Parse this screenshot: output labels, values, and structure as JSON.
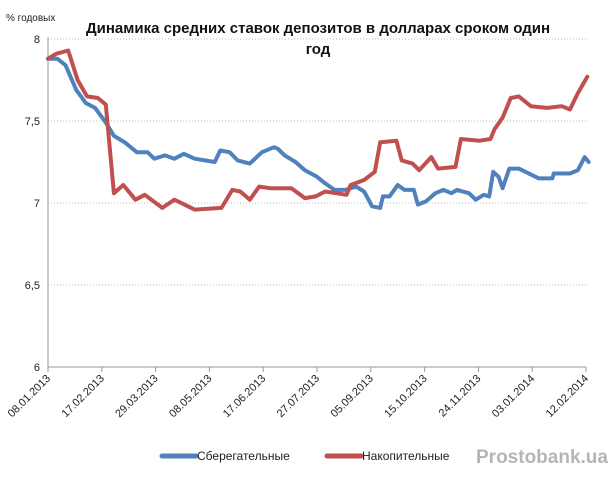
{
  "chart_data": {
    "type": "line",
    "title": "Динамика средних ставок депозитов в долларах сроком один год",
    "title_lines": [
      "Динамика средних  ставок депозитов в долларах сроком один",
      "год"
    ],
    "ylabel": "% годовых",
    "xlabel": "",
    "ylim": [
      6,
      8
    ],
    "yticks": [
      "6",
      "6,5",
      "7",
      "7,5",
      "8"
    ],
    "ytick_values": [
      6,
      6.5,
      7,
      7.5,
      8
    ],
    "xlim": [
      "2013-01-08",
      "2014-02-12"
    ],
    "xticks": [
      "08.01.2013",
      "17.02.2013",
      "29.03.2013",
      "08.05.2013",
      "17.06.2013",
      "27.07.2013",
      "05.09.2013",
      "15.10.2013",
      "24.11.2013",
      "03.01.2014",
      "12.02.2014"
    ],
    "xtick_dates": [
      "2013-01-08",
      "2013-02-17",
      "2013-03-29",
      "2013-05-08",
      "2013-06-17",
      "2013-07-27",
      "2013-09-05",
      "2013-10-15",
      "2013-11-24",
      "2014-01-03",
      "2014-02-12"
    ],
    "grid": "horizontal dotted",
    "legend_position": "bottom",
    "series": [
      {
        "name": "Сберегательные",
        "color": "#4f81bd",
        "points": [
          [
            "2013-01-08",
            7.88
          ],
          [
            "2013-01-15",
            7.88
          ],
          [
            "2013-01-21",
            7.84
          ],
          [
            "2013-01-29",
            7.69
          ],
          [
            "2013-02-05",
            7.61
          ],
          [
            "2013-02-12",
            7.58
          ],
          [
            "2013-02-20",
            7.49
          ],
          [
            "2013-02-26",
            7.41
          ],
          [
            "2013-03-06",
            7.37
          ],
          [
            "2013-03-15",
            7.31
          ],
          [
            "2013-03-23",
            7.31
          ],
          [
            "2013-03-28",
            7.27
          ],
          [
            "2013-04-05",
            7.29
          ],
          [
            "2013-04-12",
            7.27
          ],
          [
            "2013-04-19",
            7.3
          ],
          [
            "2013-04-27",
            7.27
          ],
          [
            "2013-05-12",
            7.25
          ],
          [
            "2013-05-16",
            7.32
          ],
          [
            "2013-05-23",
            7.31
          ],
          [
            "2013-05-29",
            7.26
          ],
          [
            "2013-06-07",
            7.24
          ],
          [
            "2013-06-16",
            7.31
          ],
          [
            "2013-06-25",
            7.34
          ],
          [
            "2013-06-28",
            7.33
          ],
          [
            "2013-07-03",
            7.29
          ],
          [
            "2013-07-11",
            7.25
          ],
          [
            "2013-07-18",
            7.2
          ],
          [
            "2013-07-27",
            7.16
          ],
          [
            "2013-08-02",
            7.12
          ],
          [
            "2013-08-09",
            7.08
          ],
          [
            "2013-08-17",
            7.08
          ],
          [
            "2013-08-25",
            7.1
          ],
          [
            "2013-08-31",
            7.07
          ],
          [
            "2013-09-06",
            6.98
          ],
          [
            "2013-09-12",
            6.97
          ],
          [
            "2013-09-14",
            7.04
          ],
          [
            "2013-09-19",
            7.04
          ],
          [
            "2013-09-25",
            7.11
          ],
          [
            "2013-09-30",
            7.08
          ],
          [
            "2013-10-07",
            7.08
          ],
          [
            "2013-10-10",
            6.99
          ],
          [
            "2013-10-16",
            7.01
          ],
          [
            "2013-10-23",
            7.06
          ],
          [
            "2013-10-29",
            7.08
          ],
          [
            "2013-11-04",
            7.06
          ],
          [
            "2013-11-08",
            7.08
          ],
          [
            "2013-11-17",
            7.06
          ],
          [
            "2013-11-22",
            7.02
          ],
          [
            "2013-11-28",
            7.05
          ],
          [
            "2013-12-02",
            7.04
          ],
          [
            "2013-12-05",
            7.19
          ],
          [
            "2013-12-09",
            7.16
          ],
          [
            "2013-12-12",
            7.09
          ],
          [
            "2013-12-17",
            7.21
          ],
          [
            "2013-12-24",
            7.21
          ],
          [
            "2014-01-08",
            7.15
          ],
          [
            "2014-01-18",
            7.15
          ],
          [
            "2014-01-19",
            7.18
          ],
          [
            "2014-01-31",
            7.18
          ],
          [
            "2014-02-06",
            7.2
          ],
          [
            "2014-02-11",
            7.28
          ],
          [
            "2014-02-14",
            7.25
          ]
        ]
      },
      {
        "name": "Накопительные",
        "color": "#c0504d",
        "points": [
          [
            "2013-01-08",
            7.88
          ],
          [
            "2013-01-14",
            7.91
          ],
          [
            "2013-01-23",
            7.93
          ],
          [
            "2013-01-30",
            7.75
          ],
          [
            "2013-02-06",
            7.65
          ],
          [
            "2013-02-14",
            7.64
          ],
          [
            "2013-02-20",
            7.6
          ],
          [
            "2013-02-26",
            7.06
          ],
          [
            "2013-03-05",
            7.11
          ],
          [
            "2013-03-14",
            7.02
          ],
          [
            "2013-03-21",
            7.05
          ],
          [
            "2013-04-03",
            6.97
          ],
          [
            "2013-04-12",
            7.02
          ],
          [
            "2013-04-27",
            6.96
          ],
          [
            "2013-05-17",
            6.97
          ],
          [
            "2013-05-25",
            7.08
          ],
          [
            "2013-05-31",
            7.07
          ],
          [
            "2013-06-07",
            7.02
          ],
          [
            "2013-06-14",
            7.1
          ],
          [
            "2013-06-22",
            7.09
          ],
          [
            "2013-07-08",
            7.09
          ],
          [
            "2013-07-18",
            7.03
          ],
          [
            "2013-07-26",
            7.04
          ],
          [
            "2013-08-02",
            7.07
          ],
          [
            "2013-08-18",
            7.05
          ],
          [
            "2013-08-21",
            7.11
          ],
          [
            "2013-08-31",
            7.14
          ],
          [
            "2013-09-08",
            7.19
          ],
          [
            "2013-09-12",
            7.37
          ],
          [
            "2013-09-24",
            7.38
          ],
          [
            "2013-09-28",
            7.26
          ],
          [
            "2013-10-06",
            7.24
          ],
          [
            "2013-10-11",
            7.2
          ],
          [
            "2013-10-20",
            7.28
          ],
          [
            "2013-10-25",
            7.21
          ],
          [
            "2013-11-07",
            7.22
          ],
          [
            "2013-11-11",
            7.39
          ],
          [
            "2013-11-25",
            7.38
          ],
          [
            "2013-12-03",
            7.39
          ],
          [
            "2013-12-06",
            7.45
          ],
          [
            "2013-12-12",
            7.52
          ],
          [
            "2013-12-18",
            7.64
          ],
          [
            "2013-12-24",
            7.65
          ],
          [
            "2014-01-02",
            7.59
          ],
          [
            "2014-01-14",
            7.58
          ],
          [
            "2014-01-25",
            7.59
          ],
          [
            "2014-01-31",
            7.57
          ],
          [
            "2014-02-06",
            7.67
          ],
          [
            "2014-02-13",
            7.77
          ]
        ]
      }
    ]
  },
  "watermark": "Prostobank.ua"
}
